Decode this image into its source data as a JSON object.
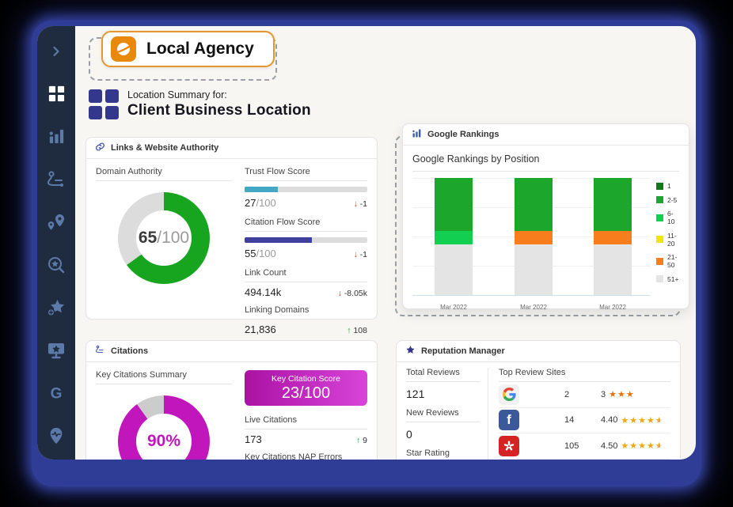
{
  "header": {
    "brand_name": "Local Agency",
    "location_label": "Location Summary for:",
    "location_name": "Client Business Location"
  },
  "links_panel": {
    "title": "Links & Website Authority",
    "domain_authority": {
      "label": "Domain Authority",
      "value": 65,
      "value_display": "65",
      "max_display": "/100",
      "color": "#17a41e",
      "track": "#dcdcdc"
    },
    "stats": [
      {
        "label": "Trust Flow Score",
        "value_display": "27",
        "max_display": "/100",
        "bar_pct": 27,
        "bar_color": "#44a8c4",
        "delta": "-1",
        "delta_dir": "down"
      },
      {
        "label": "Citation Flow Score",
        "value_display": "55",
        "max_display": "/100",
        "bar_pct": 55,
        "bar_color": "#3f3f9e",
        "delta": "-1",
        "delta_dir": "down"
      },
      {
        "label": "Link Count",
        "value_display": "494.14k",
        "delta": "-8.05k",
        "delta_dir": "down"
      },
      {
        "label": "Linking Domains",
        "value_display": "21,836",
        "delta": "108",
        "delta_dir": "up"
      }
    ]
  },
  "rankings_panel": {
    "title": "Google Rankings",
    "subtitle": "Google Rankings by Position"
  },
  "chart_data": {
    "type": "bar",
    "stacked": true,
    "title": "Google Rankings by Position",
    "categories": [
      "Mar 2022",
      "Mar 2022",
      "Mar 2022"
    ],
    "units": "percent of ranked keywords (unlabeled axis, est. from bar heights)",
    "ylim": [
      0,
      100
    ],
    "legend_position": "right",
    "series": [
      {
        "name": "1",
        "color": "#0e7a1e",
        "values": [
          0,
          0,
          0
        ]
      },
      {
        "name": "2-5",
        "color": "#1ca62b",
        "values": [
          45,
          45,
          45
        ]
      },
      {
        "name": "6-10",
        "color": "#12cf51",
        "values": [
          12,
          0,
          0
        ]
      },
      {
        "name": "11-20",
        "color": "#f3e600",
        "values": [
          0,
          0,
          0
        ]
      },
      {
        "name": "21-50",
        "color": "#f87d1c",
        "values": [
          0,
          12,
          12
        ]
      },
      {
        "name": "51+",
        "color": "#e4e4e4",
        "values": [
          43,
          43,
          43
        ]
      }
    ]
  },
  "citations_panel": {
    "title": "Citations",
    "summary_label": "Key Citations Summary",
    "donut": {
      "value": 90,
      "value_display": "90%",
      "color": "#c216bd",
      "track": "#cccccc"
    },
    "score_box": {
      "label": "Key Citation Score",
      "value": "23/100",
      "gradient_from": "#aa12a4",
      "gradient_to": "#d944d9"
    },
    "stats": [
      {
        "label": "Live Citations",
        "value_display": "173",
        "delta": "9",
        "delta_dir": "up"
      },
      {
        "label": "Key Citations NAP Errors"
      }
    ]
  },
  "reputation_panel": {
    "title": "Reputation Manager",
    "stats": [
      {
        "label": "Total Reviews",
        "value": "121"
      },
      {
        "label": "New Reviews",
        "value": "0"
      },
      {
        "label": "Star Rating",
        "value": ""
      }
    ],
    "review_sites": {
      "title": "Top Review Sites",
      "sites": [
        {
          "name": "Google",
          "count": "2",
          "rating": "3",
          "stars_full": 3,
          "stars_half": false,
          "star_color": "#e8710a"
        },
        {
          "name": "Facebook",
          "count": "14",
          "rating": "4.40",
          "stars_full": 4,
          "stars_half": true,
          "star_color": "#f2a50c"
        },
        {
          "name": "Yelp",
          "count": "105",
          "rating": "4.50",
          "stars_full": 4,
          "stars_half": true,
          "star_color": "#f2a50c"
        }
      ]
    }
  },
  "colors": {
    "frame": "#2f3d96",
    "canvas": "#f7f6f3",
    "sidebar_bg": "#1f2b3e",
    "sidebar_icon": "#5b7aa9",
    "accent_indigo": "#34388c",
    "brand_orange": "#e8890c",
    "delta_down": "#d3262c",
    "delta_up": "#1d9c2d"
  }
}
